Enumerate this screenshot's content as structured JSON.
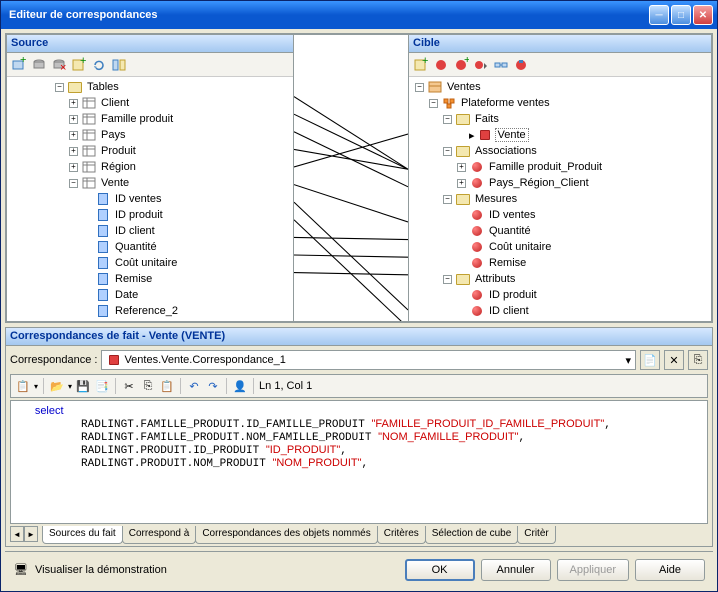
{
  "window": {
    "title": "Editeur de correspondances"
  },
  "source": {
    "title": "Source",
    "root": "Tables",
    "tables": [
      "Client",
      "Famille produit",
      "Pays",
      "Produit",
      "Région",
      "Vente"
    ],
    "vente_cols": [
      "ID ventes",
      "ID produit",
      "ID client",
      "Quantité",
      "Coût unitaire",
      "Remise",
      "Date",
      "Reference_2"
    ]
  },
  "cible": {
    "title": "Cible",
    "root": "Ventes",
    "platform": "Plateforme ventes",
    "faits": "Faits",
    "vente": "Vente",
    "associations": "Associations",
    "assoc_items": [
      "Famille produit_Produit",
      "Pays_Région_Client"
    ],
    "mesures": "Mesures",
    "mes_items": [
      "ID ventes",
      "Quantité",
      "Coût unitaire",
      "Remise"
    ],
    "attributs": "Attributs",
    "attr_items": [
      "ID produit",
      "ID client"
    ]
  },
  "bottom": {
    "header": "Correspondances de fait - Vente (VENTE)",
    "corr_label": "Correspondance :",
    "corr_value": "Ventes.Vente.Correspondance_1",
    "cursor": "Ln 1, Col 1",
    "sql": {
      "kw": "select",
      "l1a": "RADLINGT.FAMILLE_PRODUIT.ID_FAMILLE_PRODUIT ",
      "l1b": "\"FAMILLE_PRODUIT_ID_FAMILLE_PRODUIT\"",
      "l2a": "RADLINGT.FAMILLE_PRODUIT.NOM_FAMILLE_PRODUIT ",
      "l2b": "\"NOM_FAMILLE_PRODUIT\"",
      "l3a": "RADLINGT.PRODUIT.ID_PRODUIT ",
      "l3b": "\"ID_PRODUIT\"",
      "l4a": "RADLINGT.PRODUIT.NOM_PRODUIT ",
      "l4b": "\"NOM_PRODUIT\""
    },
    "tabs": [
      "Sources du fait",
      "Correspond à",
      "Correspondances des objets nommés",
      "Critères",
      "Sélection de cube",
      "Critèr"
    ]
  },
  "footer": {
    "demo": "Visualiser la démonstration",
    "ok": "OK",
    "cancel": "Annuler",
    "apply": "Appliquer",
    "help": "Aide"
  },
  "colors": {
    "line": "#000000"
  }
}
